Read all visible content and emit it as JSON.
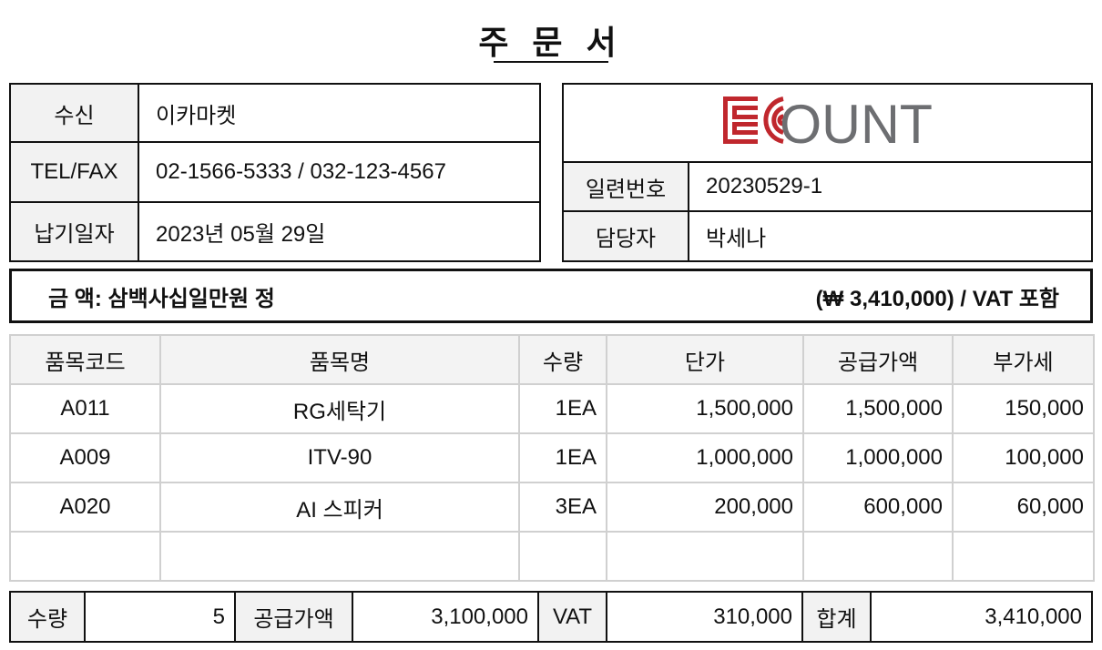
{
  "title": "주 문 서",
  "recipient": {
    "rows": [
      {
        "label": "수신",
        "value": "이카마켓"
      },
      {
        "label": "TEL/FAX",
        "value": "02-1566-5333 / 032-123-4567"
      },
      {
        "label": "납기일자",
        "value": "2023년 05월 29일"
      }
    ]
  },
  "issuer": {
    "logo_text": "ECOUNT",
    "logo_colors": {
      "red": "#c0272d",
      "gray": "#6d6e71"
    },
    "rows": [
      {
        "label": "일련번호",
        "value": "20230529-1"
      },
      {
        "label": "담당자",
        "value": "박세나"
      }
    ]
  },
  "amount": {
    "left": "금 액: 삼백사십일만원 정",
    "right": "(₩ 3,410,000) / VAT 포함"
  },
  "items": {
    "headers": [
      "품목코드",
      "품목명",
      "수량",
      "단가",
      "공급가액",
      "부가세"
    ],
    "rows": [
      [
        "A011",
        "RG세탁기",
        "1EA",
        "1,500,000",
        "1,500,000",
        "150,000"
      ],
      [
        "A009",
        "ITV-90",
        "1EA",
        "1,000,000",
        "1,000,000",
        "100,000"
      ],
      [
        "A020",
        "AI 스피커",
        "3EA",
        "200,000",
        "600,000",
        "60,000"
      ],
      [
        "",
        "",
        "",
        "",
        "",
        ""
      ]
    ]
  },
  "totals": {
    "qty_label": "수량",
    "qty": "5",
    "supply_label": "공급가액",
    "supply": "3,100,000",
    "vat_label": "VAT",
    "vat": "310,000",
    "total_label": "합계",
    "total": "3,410,000"
  }
}
